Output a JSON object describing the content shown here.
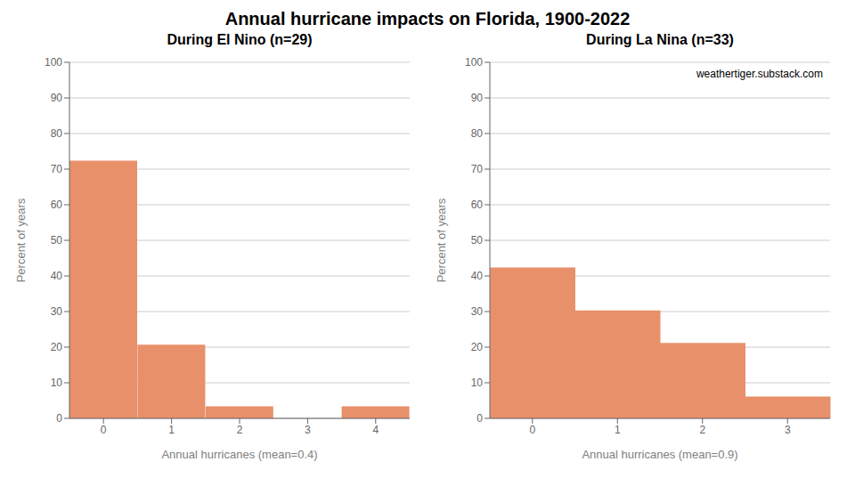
{
  "title": "Annual hurricane impacts on Florida, 1900-2022",
  "chart_data": [
    {
      "type": "bar",
      "title": "During El Nino (n=29)",
      "categories": [
        "0",
        "1",
        "2",
        "3",
        "4"
      ],
      "values": [
        72.4,
        20.7,
        3.4,
        0.0,
        3.4
      ],
      "color": "#E8906A",
      "x_label": "Annual hurricanes (mean=0.4)",
      "y_label": "Percent of years",
      "ylim": [
        0,
        100
      ],
      "yticks": [
        0,
        10,
        20,
        30,
        40,
        50,
        60,
        70,
        80,
        90,
        100
      ],
      "grid": true
    },
    {
      "type": "bar",
      "title": "During La Nina (n=33)",
      "categories": [
        "0",
        "1",
        "2",
        "3"
      ],
      "values": [
        42.4,
        30.3,
        21.2,
        6.1
      ],
      "color": "#E8906A",
      "x_label": "Annual hurricanes (mean=0.9)",
      "y_label": "Percent of years",
      "ylim": [
        0,
        100
      ],
      "yticks": [
        0,
        10,
        20,
        30,
        40,
        50,
        60,
        70,
        80,
        90,
        100
      ],
      "grid": true,
      "annotation": "weathertiger.substack.com"
    }
  ]
}
